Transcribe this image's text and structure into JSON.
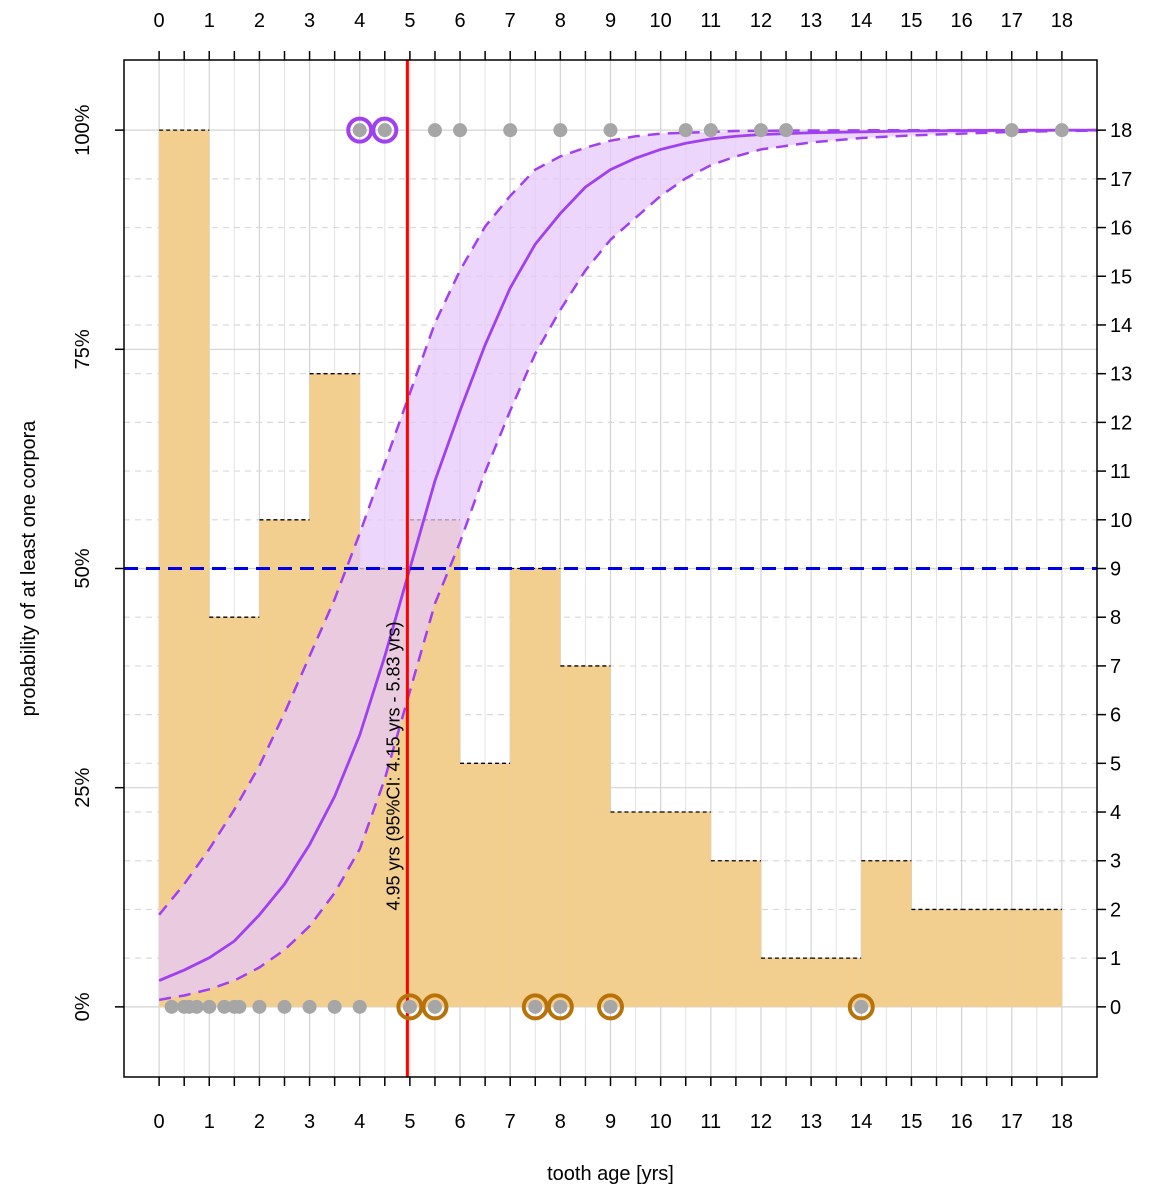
{
  "chart_data": {
    "type": "bar",
    "title": "",
    "xlabel": "tooth age [yrs]",
    "ylabel": "probability of at least one corpora",
    "xlim": [
      -0.7,
      18.7
    ],
    "ylim": [
      -0.08,
      1.08
    ],
    "x_ticks": [
      0,
      1,
      2,
      3,
      4,
      5,
      6,
      7,
      8,
      9,
      10,
      11,
      12,
      13,
      14,
      15,
      16,
      17,
      18
    ],
    "y_ticks": [
      0,
      0.25,
      0.5,
      0.75,
      1
    ],
    "y_tick_labels": [
      "0%",
      "25%",
      "50%",
      "75%",
      "100%"
    ],
    "right_axis_ticks": [
      0,
      1,
      2,
      3,
      4,
      5,
      6,
      7,
      8,
      9,
      10,
      11,
      12,
      13,
      14,
      15,
      16,
      17,
      18
    ],
    "right_axis_max": 18,
    "grid": true,
    "histogram": {
      "bin_edges": [
        0,
        1,
        2,
        3,
        4,
        5,
        6,
        7,
        8,
        9,
        10,
        11,
        12,
        13,
        14,
        15,
        16,
        17,
        18
      ],
      "counts": [
        18,
        8,
        10,
        13,
        9,
        10,
        5,
        9,
        7,
        4,
        4,
        3,
        1,
        1,
        3,
        2,
        2,
        2
      ],
      "color": "#f3cf8f"
    },
    "logistic_fit": {
      "color": "#a040f0",
      "band_fill": "#e6c8fa",
      "x": [
        0,
        0.5,
        1,
        1.5,
        2,
        2.5,
        3,
        3.5,
        4,
        4.5,
        5,
        5.5,
        6,
        6.5,
        7,
        7.5,
        8,
        8.5,
        9,
        9.5,
        10,
        10.5,
        11,
        11.5,
        12,
        13,
        14,
        15,
        16,
        17,
        18,
        18.7
      ],
      "fit": [
        0.03,
        0.042,
        0.056,
        0.075,
        0.105,
        0.14,
        0.185,
        0.24,
        0.31,
        0.4,
        0.5,
        0.6,
        0.68,
        0.755,
        0.82,
        0.87,
        0.905,
        0.935,
        0.955,
        0.968,
        0.978,
        0.985,
        0.99,
        0.993,
        0.995,
        0.997,
        0.998,
        0.999,
        0.9995,
        0.9998,
        0.9999,
        1.0
      ],
      "lower": [
        0.008,
        0.013,
        0.02,
        0.03,
        0.045,
        0.065,
        0.092,
        0.13,
        0.18,
        0.26,
        0.36,
        0.46,
        0.53,
        0.61,
        0.68,
        0.745,
        0.795,
        0.84,
        0.875,
        0.9,
        0.925,
        0.945,
        0.96,
        0.97,
        0.978,
        0.986,
        0.991,
        0.994,
        0.996,
        0.998,
        0.999,
        0.9995
      ],
      "upper": [
        0.105,
        0.14,
        0.18,
        0.225,
        0.275,
        0.335,
        0.4,
        0.465,
        0.54,
        0.62,
        0.7,
        0.78,
        0.84,
        0.89,
        0.925,
        0.955,
        0.97,
        0.98,
        0.988,
        0.993,
        0.996,
        0.997,
        0.998,
        0.999,
        0.9993,
        0.9996,
        0.9998,
        0.9999,
        0.99995,
        0.99998,
        0.99999,
        1.0
      ]
    },
    "observations": {
      "with_corpora": [
        4,
        4.5,
        5.5,
        6,
        7,
        8,
        9,
        10.5,
        11,
        12,
        12.5,
        17,
        18
      ],
      "without_corpora": [
        0.25,
        0.5,
        0.6,
        0.75,
        1,
        1.3,
        1.5,
        1.6,
        2,
        2.5,
        3,
        3.5,
        4,
        5,
        5.5,
        7.5,
        8,
        9,
        14
      ],
      "outliers_with_corpora": [
        4,
        4.5
      ],
      "outliers_without_corpora": [
        5,
        5.5,
        7.5,
        8,
        9,
        14
      ],
      "point_color": "#a6a6a6",
      "outlier_top_color": "#a040f0",
      "outlier_bottom_color": "#b8720a"
    },
    "threshold": {
      "x": 4.95,
      "y": 0.5,
      "vline_color": "#ff0000",
      "hline_color": "#0000e6"
    },
    "annotation": "4.95 yrs (95%CI: 4.15 yrs - 5.83 yrs)"
  }
}
